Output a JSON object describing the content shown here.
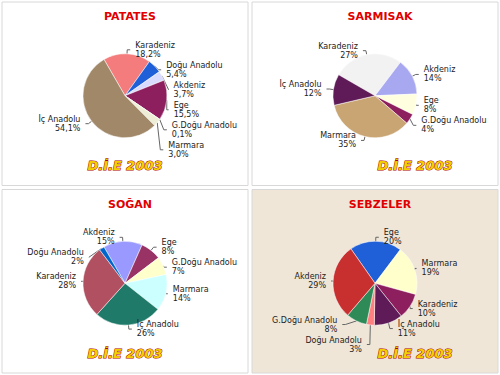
{
  "chart_data": [
    {
      "type": "pie",
      "title": "PATATES",
      "annotation": "D.İ.E 2003",
      "categories": [
        "Karadeniz",
        "Doğu Anadolu",
        "Akdeniz",
        "Ege",
        "G.Doğu Anadolu",
        "Marmara",
        "İç Anadolu"
      ],
      "values": [
        18.2,
        5.4,
        3.7,
        15.5,
        0.1,
        3.0,
        54.1
      ],
      "value_labels": [
        "18,2%",
        "5,4%",
        "3,7%",
        "15,5%",
        "0,1%",
        "3,0%",
        "54,1%"
      ],
      "colors": [
        "#f47c7c",
        "#1f5fd8",
        "#d9dcff",
        "#8e1f5e",
        "#c8f0f5",
        "#eeeed6",
        "#a08868"
      ],
      "data_labels": true
    },
    {
      "type": "pie",
      "title": "SARMISAK",
      "annotation": "D.İ.E 2003",
      "categories": [
        "Karadeniz",
        "Akdeniz",
        "Ege",
        "G.Doğu Anadolu",
        "Marmara",
        "İç Anadolu"
      ],
      "values": [
        27,
        14,
        8,
        4,
        35,
        12
      ],
      "value_labels": [
        "27%",
        "14%",
        "8%",
        "4%",
        "35%",
        "12%"
      ],
      "colors": [
        "#f2f2f2",
        "#a8a8f0",
        "#ffffe0",
        "#8e1f5e",
        "#c9a574",
        "#5e1b57"
      ],
      "data_labels": true
    },
    {
      "type": "pie",
      "title": "SOĞAN",
      "annotation": "D.İ.E 2003",
      "categories": [
        "Akdeniz",
        "Ege",
        "G.Doğu Anadolu",
        "Marmara",
        "İç Anadolu",
        "Karadeniz",
        "Doğu Anadolu"
      ],
      "values": [
        15,
        8,
        7,
        14,
        26,
        28,
        2
      ],
      "value_labels": [
        "15%",
        "8%",
        "7%",
        "14%",
        "26%",
        "28%",
        "2%"
      ],
      "colors": [
        "#9999ff",
        "#993366",
        "#ffffcc",
        "#ccffff",
        "#1f7a6a",
        "#b05060",
        "#0066cc"
      ],
      "data_labels": true
    },
    {
      "type": "pie",
      "title": "SEBZELER",
      "annotation": "D.İ.E 2003",
      "categories": [
        "Ege",
        "Marmara",
        "Karadeniz",
        "İç Anadolu",
        "Doğu Anadolu",
        "G.Doğu Anadolu",
        "Akdeniz"
      ],
      "values": [
        20,
        19,
        10,
        11,
        3,
        8,
        29
      ],
      "value_labels": [
        "20%",
        "19%",
        "10%",
        "11%",
        "3%",
        "8%",
        "29%"
      ],
      "colors": [
        "#1f5fd8",
        "#ffffcc",
        "#8e1f5e",
        "#5e1b57",
        "#ff8080",
        "#2e8b57",
        "#c83030"
      ],
      "data_labels": true
    }
  ]
}
